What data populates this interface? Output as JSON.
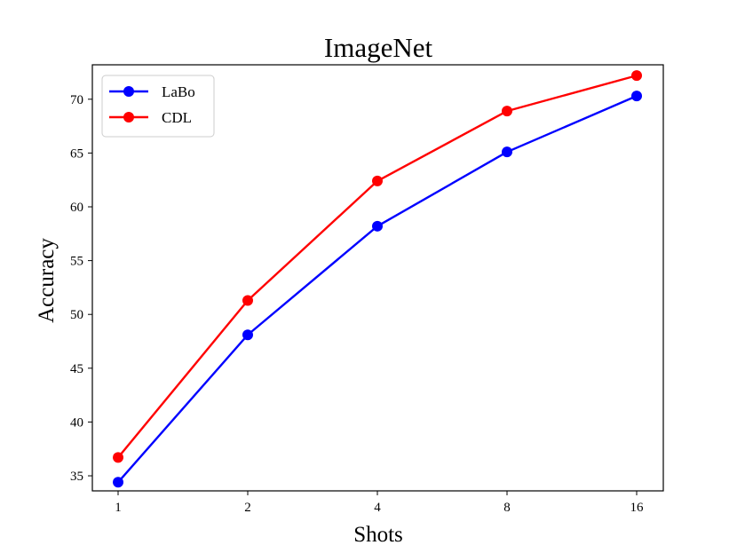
{
  "chart_data": {
    "type": "line",
    "title": "ImageNet",
    "xlabel": "Shots",
    "ylabel": "Accuracy",
    "categories": [
      "1",
      "2",
      "4",
      "8",
      "16"
    ],
    "ylim": [
      33.6,
      73.2
    ],
    "yticks": [
      "35",
      "40",
      "45",
      "50",
      "55",
      "60",
      "65",
      "70"
    ],
    "grid": false,
    "legend_position": "upper-left",
    "series": [
      {
        "name": "LaBo",
        "color": "#0000ff",
        "values": [
          34.4,
          48.1,
          58.2,
          65.1,
          70.3
        ]
      },
      {
        "name": "CDL",
        "color": "#ff0000",
        "values": [
          36.7,
          51.3,
          62.4,
          68.9,
          72.2
        ]
      }
    ]
  }
}
